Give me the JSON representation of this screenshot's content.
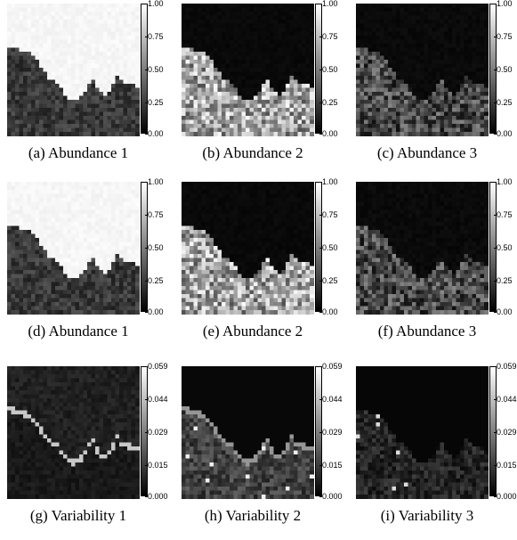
{
  "panels": [
    {
      "caption": "(a) Abundance 1",
      "kind": "ab1",
      "ticks": [
        "1.00",
        "0.75",
        "0.50",
        "0.25",
        "0.00"
      ]
    },
    {
      "caption": "(b) Abundance 2",
      "kind": "ab2",
      "ticks": [
        "1.00",
        "0.75",
        "0.50",
        "0.25",
        "0.00"
      ]
    },
    {
      "caption": "(c) Abundance 3",
      "kind": "ab3",
      "ticks": [
        "1.00",
        "0.75",
        "0.50",
        "0.25",
        "0.00"
      ]
    },
    {
      "caption": "(d) Abundance 1",
      "kind": "ab1",
      "ticks": [
        "1.00",
        "0.75",
        "0.50",
        "0.25",
        "0.00"
      ]
    },
    {
      "caption": "(e) Abundance 2",
      "kind": "ab2",
      "ticks": [
        "1.00",
        "0.75",
        "0.50",
        "0.25",
        "0.00"
      ]
    },
    {
      "caption": "(f) Abundance 3",
      "kind": "ab3",
      "ticks": [
        "1.00",
        "0.75",
        "0.50",
        "0.25",
        "0.00"
      ]
    },
    {
      "caption": "(g) Variability 1",
      "kind": "var1",
      "ticks": [
        "0.059",
        "0.044",
        "0.029",
        "0.015",
        "0.000"
      ]
    },
    {
      "caption": "(h) Variability 2",
      "kind": "var2",
      "ticks": [
        "0.059",
        "0.044",
        "0.029",
        "0.015",
        "0.000"
      ]
    },
    {
      "caption": "(i) Variability 3",
      "kind": "var3",
      "ticks": [
        "0.059",
        "0.044",
        "0.029",
        "0.015",
        "0.000"
      ]
    }
  ]
}
